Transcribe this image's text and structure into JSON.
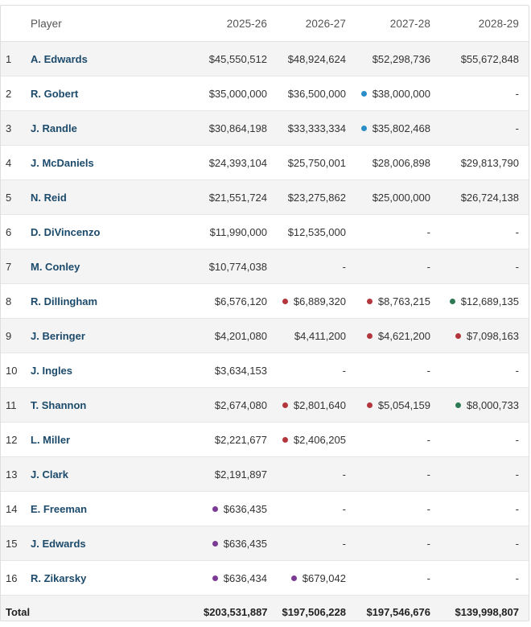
{
  "colors": {
    "red": "#b3363d",
    "blue": "#2b8ec9",
    "green": "#2e7a54",
    "purple": "#7b3a94",
    "name_link": "#1c4a6b"
  },
  "header": {
    "rank": "",
    "player": "Player",
    "seasons": [
      "2025-26",
      "2026-27",
      "2027-28",
      "2028-29"
    ]
  },
  "rows": [
    {
      "rank": "1",
      "player": "A. Edwards",
      "cells": [
        {
          "v": "$45,550,512",
          "dot": ""
        },
        {
          "v": "$48,924,624",
          "dot": ""
        },
        {
          "v": "$52,298,736",
          "dot": ""
        },
        {
          "v": "$55,672,848",
          "dot": ""
        }
      ]
    },
    {
      "rank": "2",
      "player": "R. Gobert",
      "cells": [
        {
          "v": "$35,000,000",
          "dot": ""
        },
        {
          "v": "$36,500,000",
          "dot": ""
        },
        {
          "v": "$38,000,000",
          "dot": "blue"
        },
        {
          "v": "-",
          "dot": ""
        }
      ]
    },
    {
      "rank": "3",
      "player": "J. Randle",
      "cells": [
        {
          "v": "$30,864,198",
          "dot": ""
        },
        {
          "v": "$33,333,334",
          "dot": ""
        },
        {
          "v": "$35,802,468",
          "dot": "blue"
        },
        {
          "v": "-",
          "dot": ""
        }
      ]
    },
    {
      "rank": "4",
      "player": "J. McDaniels",
      "cells": [
        {
          "v": "$24,393,104",
          "dot": ""
        },
        {
          "v": "$25,750,001",
          "dot": ""
        },
        {
          "v": "$28,006,898",
          "dot": ""
        },
        {
          "v": "$29,813,790",
          "dot": ""
        }
      ]
    },
    {
      "rank": "5",
      "player": "N. Reid",
      "cells": [
        {
          "v": "$21,551,724",
          "dot": ""
        },
        {
          "v": "$23,275,862",
          "dot": ""
        },
        {
          "v": "$25,000,000",
          "dot": ""
        },
        {
          "v": "$26,724,138",
          "dot": ""
        }
      ]
    },
    {
      "rank": "6",
      "player": "D. DiVincenzo",
      "cells": [
        {
          "v": "$11,990,000",
          "dot": ""
        },
        {
          "v": "$12,535,000",
          "dot": ""
        },
        {
          "v": "-",
          "dot": ""
        },
        {
          "v": "-",
          "dot": ""
        }
      ]
    },
    {
      "rank": "7",
      "player": "M. Conley",
      "cells": [
        {
          "v": "$10,774,038",
          "dot": ""
        },
        {
          "v": "-",
          "dot": ""
        },
        {
          "v": "-",
          "dot": ""
        },
        {
          "v": "-",
          "dot": ""
        }
      ]
    },
    {
      "rank": "8",
      "player": "R. Dillingham",
      "cells": [
        {
          "v": "$6,576,120",
          "dot": ""
        },
        {
          "v": "$6,889,320",
          "dot": "red"
        },
        {
          "v": "$8,763,215",
          "dot": "red"
        },
        {
          "v": "$12,689,135",
          "dot": "green"
        }
      ]
    },
    {
      "rank": "9",
      "player": "J. Beringer",
      "cells": [
        {
          "v": "$4,201,080",
          "dot": ""
        },
        {
          "v": "$4,411,200",
          "dot": ""
        },
        {
          "v": "$4,621,200",
          "dot": "red"
        },
        {
          "v": "$7,098,163",
          "dot": "red"
        }
      ]
    },
    {
      "rank": "10",
      "player": "J. Ingles",
      "cells": [
        {
          "v": "$3,634,153",
          "dot": ""
        },
        {
          "v": "-",
          "dot": ""
        },
        {
          "v": "-",
          "dot": ""
        },
        {
          "v": "-",
          "dot": ""
        }
      ]
    },
    {
      "rank": "11",
      "player": "T. Shannon",
      "cells": [
        {
          "v": "$2,674,080",
          "dot": ""
        },
        {
          "v": "$2,801,640",
          "dot": "red"
        },
        {
          "v": "$5,054,159",
          "dot": "red"
        },
        {
          "v": "$8,000,733",
          "dot": "green"
        }
      ]
    },
    {
      "rank": "12",
      "player": "L. Miller",
      "cells": [
        {
          "v": "$2,221,677",
          "dot": ""
        },
        {
          "v": "$2,406,205",
          "dot": "red"
        },
        {
          "v": "-",
          "dot": ""
        },
        {
          "v": "-",
          "dot": ""
        }
      ]
    },
    {
      "rank": "13",
      "player": "J. Clark",
      "cells": [
        {
          "v": "$2,191,897",
          "dot": ""
        },
        {
          "v": "-",
          "dot": ""
        },
        {
          "v": "-",
          "dot": ""
        },
        {
          "v": "-",
          "dot": ""
        }
      ]
    },
    {
      "rank": "14",
      "player": "E. Freeman",
      "cells": [
        {
          "v": "$636,435",
          "dot": "purple"
        },
        {
          "v": "-",
          "dot": ""
        },
        {
          "v": "-",
          "dot": ""
        },
        {
          "v": "-",
          "dot": ""
        }
      ]
    },
    {
      "rank": "15",
      "player": "J. Edwards",
      "cells": [
        {
          "v": "$636,435",
          "dot": "purple"
        },
        {
          "v": "-",
          "dot": ""
        },
        {
          "v": "-",
          "dot": ""
        },
        {
          "v": "-",
          "dot": ""
        }
      ]
    },
    {
      "rank": "16",
      "player": "R. Zikarsky",
      "cells": [
        {
          "v": "$636,434",
          "dot": "purple"
        },
        {
          "v": "$679,042",
          "dot": "purple"
        },
        {
          "v": "-",
          "dot": ""
        },
        {
          "v": "-",
          "dot": ""
        }
      ]
    }
  ],
  "total": {
    "label": "Total",
    "values": [
      "$203,531,887",
      "$197,506,228",
      "$197,546,676",
      "$139,998,807"
    ]
  }
}
